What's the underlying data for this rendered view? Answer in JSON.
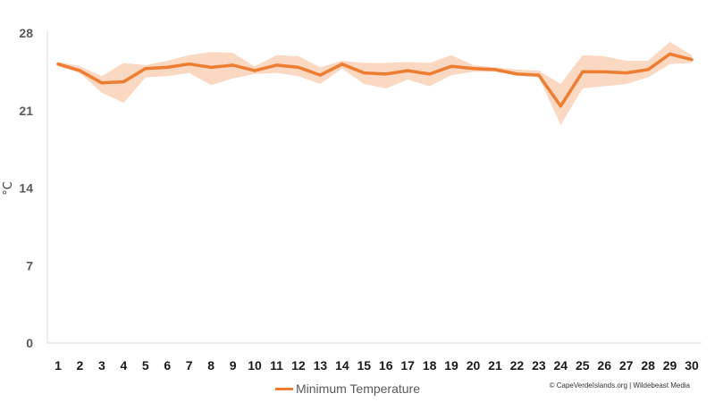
{
  "chart_data": {
    "type": "line",
    "title": "",
    "xlabel": "",
    "ylabel": "°C",
    "categories": [
      "1",
      "2",
      "3",
      "4",
      "5",
      "6",
      "7",
      "8",
      "9",
      "10",
      "11",
      "12",
      "13",
      "14",
      "15",
      "16",
      "17",
      "18",
      "19",
      "20",
      "21",
      "22",
      "23",
      "24",
      "25",
      "26",
      "27",
      "28",
      "29",
      "30"
    ],
    "yticks": [
      "0",
      "7",
      "14",
      "21",
      "28"
    ],
    "ylim": [
      0,
      28
    ],
    "grid": false,
    "legend_position": "bottom",
    "series": [
      {
        "name": "Minimum Temperature",
        "color": "#ED7D31",
        "values": [
          25.2,
          24.6,
          23.5,
          23.6,
          24.8,
          24.9,
          25.2,
          24.9,
          25.1,
          24.6,
          25.1,
          24.9,
          24.2,
          25.2,
          24.4,
          24.3,
          24.6,
          24.3,
          25.0,
          24.8,
          24.7,
          24.3,
          24.2,
          21.4,
          24.5,
          24.5,
          24.4,
          24.7,
          26.1,
          25.6
        ]
      }
    ],
    "range_band": {
      "color": "#F8CBAD",
      "lower": [
        25.0,
        24.4,
        22.6,
        21.7,
        24.0,
        24.1,
        24.4,
        23.3,
        23.9,
        24.3,
        24.4,
        24.1,
        23.4,
        24.8,
        23.4,
        23.0,
        23.8,
        23.2,
        24.2,
        24.5,
        24.5,
        24.2,
        24.0,
        19.7,
        23.0,
        23.2,
        23.4,
        24.0,
        25.2,
        25.3
      ],
      "upper": [
        25.4,
        25.0,
        24.1,
        25.3,
        25.1,
        25.5,
        26.0,
        26.3,
        26.2,
        25.0,
        26.0,
        25.9,
        24.9,
        25.5,
        25.3,
        25.3,
        25.4,
        25.3,
        26.0,
        25.1,
        24.9,
        24.7,
        24.6,
        23.4,
        26.0,
        25.9,
        25.5,
        25.5,
        27.2,
        26.0
      ]
    }
  },
  "legend_label": "Minimum Temperature",
  "credit": "© CapeVerdeIslands.org | Wildebeast Media"
}
